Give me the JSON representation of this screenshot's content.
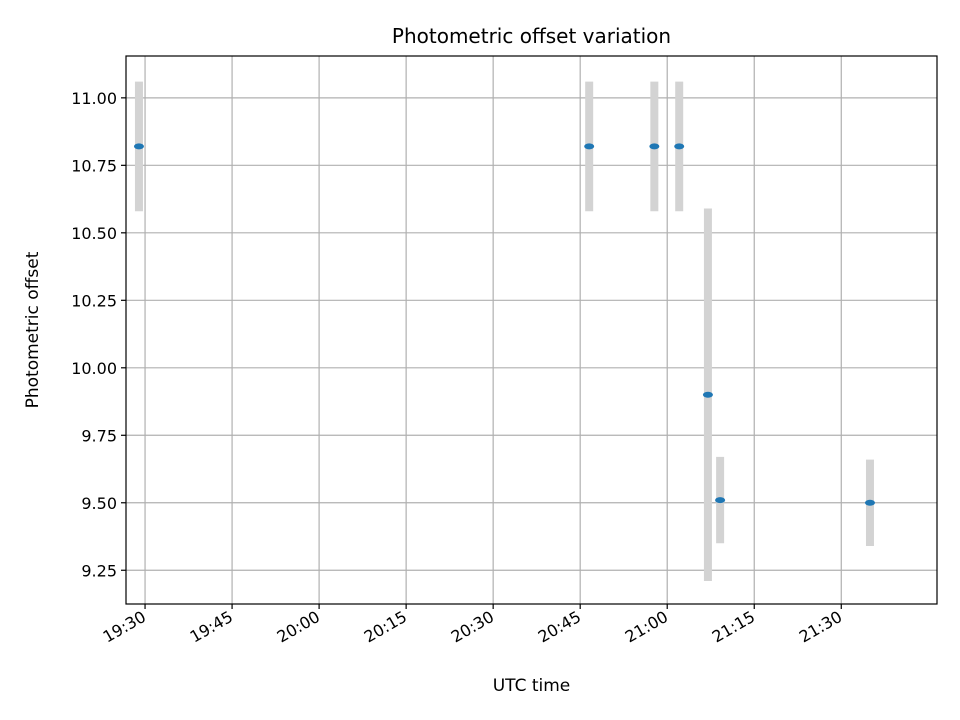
{
  "chart_data": {
    "type": "scatter",
    "title": "Photometric offset variation",
    "xlabel": "UTC time",
    "ylabel": "Photometric offset",
    "x_axis": {
      "kind": "time",
      "range": [
        "19:26:43",
        "21:46:30"
      ],
      "ticks": [
        "19:30",
        "19:45",
        "20:00",
        "20:15",
        "20:30",
        "20:45",
        "21:00",
        "21:15",
        "21:30"
      ]
    },
    "y_axis": {
      "range": [
        9.125,
        11.155
      ],
      "ticks": [
        "9.25",
        "9.50",
        "9.75",
        "10.00",
        "10.25",
        "10.50",
        "10.75",
        "11.00"
      ]
    },
    "grid": true,
    "points": [
      {
        "x": "19:28:57",
        "y": 10.82,
        "err_low": 10.58,
        "err_high": 11.06
      },
      {
        "x": "20:46:33",
        "y": 10.82,
        "err_low": 10.58,
        "err_high": 11.06
      },
      {
        "x": "20:57:47",
        "y": 10.82,
        "err_low": 10.58,
        "err_high": 11.06
      },
      {
        "x": "21:02:04",
        "y": 10.82,
        "err_low": 10.58,
        "err_high": 11.06
      },
      {
        "x": "21:07:01",
        "y": 9.9,
        "err_low": 9.21,
        "err_high": 10.59
      },
      {
        "x": "21:09:07",
        "y": 9.51,
        "err_low": 9.35,
        "err_high": 9.67
      },
      {
        "x": "21:34:57",
        "y": 9.5,
        "err_low": 9.34,
        "err_high": 9.66
      }
    ],
    "marker_color": "#1f77b4",
    "errorbar_color": "#d3d3d3",
    "grid_color": "#b0b0b0"
  }
}
